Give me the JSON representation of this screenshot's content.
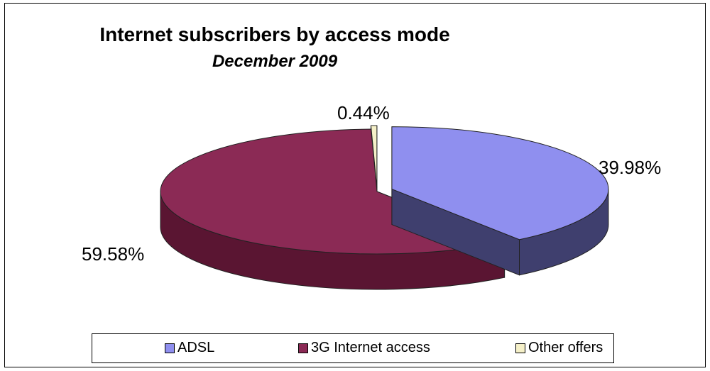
{
  "chart_data": {
    "type": "pie",
    "title": "Internet subscribers by access mode",
    "subtitle": "December 2009",
    "categories": [
      "ADSL",
      "3G Internet access",
      "Other offers"
    ],
    "values": [
      39.98,
      59.58,
      0.44
    ],
    "value_labels": [
      "39.98%",
      "59.58%",
      "0.44%"
    ],
    "colors": [
      "#8f8fef",
      "#8b2a55",
      "#f5f0c8"
    ],
    "side_colors": [
      "#3f3f6e",
      "#5a1532",
      "#a8a37c"
    ],
    "style": "3d-exploded",
    "legend_position": "bottom"
  }
}
